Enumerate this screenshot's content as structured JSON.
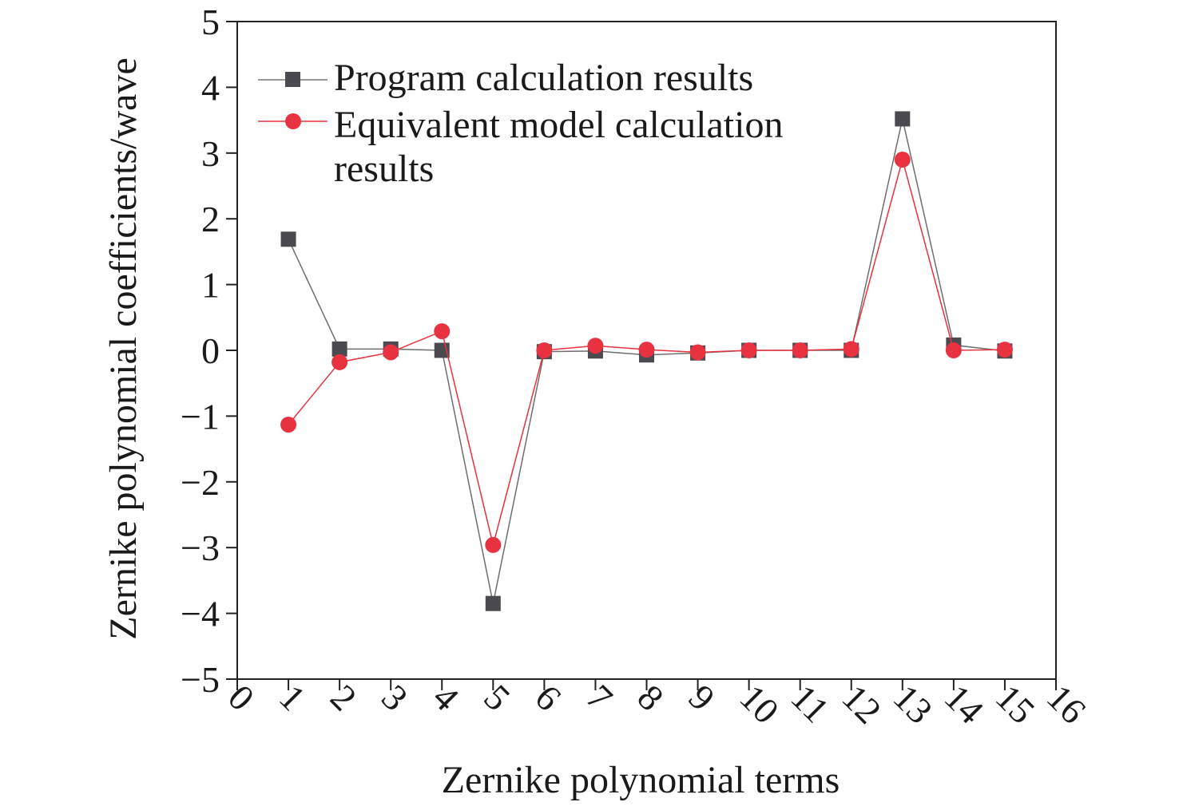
{
  "chart_data": {
    "type": "line",
    "title": "",
    "xlabel": "Zernike polynomial terms",
    "ylabel": "Zernike polynomial coefficients/wave",
    "xlim": [
      0,
      16
    ],
    "ylim": [
      -5,
      5
    ],
    "xticks": [
      "0",
      "1",
      "2",
      "3",
      "4",
      "5",
      "6",
      "7",
      "8",
      "9",
      "10",
      "11",
      "12",
      "13",
      "14",
      "15",
      "16"
    ],
    "yticks": [
      "5",
      "4",
      "3",
      "2",
      "1",
      "0",
      "−1",
      "−2",
      "−3",
      "−4",
      "−5"
    ],
    "grid": false,
    "legend_position": "top-left",
    "x": [
      1,
      2,
      3,
      4,
      5,
      6,
      7,
      8,
      9,
      10,
      11,
      12,
      13,
      14,
      15
    ],
    "series": [
      {
        "name": "Program calculation results",
        "marker": "square",
        "color": "#4a4a50",
        "line_color": "#6e6e6e",
        "values": [
          1.69,
          0.02,
          0.02,
          0.0,
          -3.85,
          -0.02,
          -0.01,
          -0.07,
          -0.04,
          0.0,
          0.0,
          0.0,
          3.52,
          0.08,
          -0.01
        ]
      },
      {
        "name": "Equivalent model calculation results",
        "legend_lines": [
          "Equivalent model calculation",
          "results"
        ],
        "marker": "circle",
        "color": "#e8323f",
        "line_color": "#e8323f",
        "values": [
          -1.13,
          -0.18,
          -0.03,
          0.29,
          -2.96,
          0.0,
          0.07,
          0.01,
          -0.03,
          0.0,
          0.0,
          0.02,
          2.9,
          0.0,
          0.01
        ]
      }
    ]
  }
}
